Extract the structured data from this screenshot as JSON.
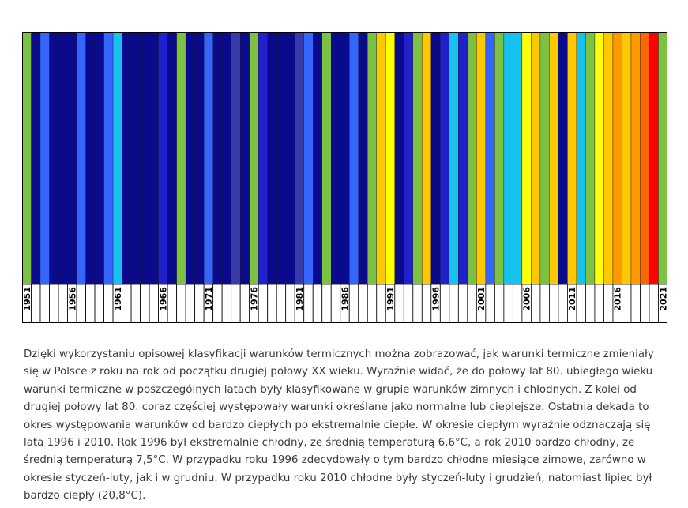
{
  "chart_data": {
    "type": "bar",
    "title": "",
    "xlabel": "",
    "ylabel": "",
    "categories": [
      "1951",
      "1952",
      "1953",
      "1954",
      "1955",
      "1956",
      "1957",
      "1958",
      "1959",
      "1960",
      "1961",
      "1962",
      "1963",
      "1964",
      "1965",
      "1966",
      "1967",
      "1968",
      "1969",
      "1970",
      "1971",
      "1972",
      "1973",
      "1974",
      "1975",
      "1976",
      "1977",
      "1978",
      "1979",
      "1980",
      "1981",
      "1982",
      "1983",
      "1984",
      "1985",
      "1986",
      "1987",
      "1988",
      "1989",
      "1990",
      "1991",
      "1992",
      "1993",
      "1994",
      "1995",
      "1996",
      "1997",
      "1998",
      "1999",
      "2000",
      "2001",
      "2002",
      "2003",
      "2004",
      "2005",
      "2006",
      "2007",
      "2008",
      "2009",
      "2010",
      "2011",
      "2012",
      "2013",
      "2014",
      "2015",
      "2016",
      "2017",
      "2018",
      "2019",
      "2020",
      "2021"
    ],
    "tick_labels": [
      "1951",
      "1956",
      "1961",
      "1966",
      "1971",
      "1976",
      "1981",
      "1986",
      "1991",
      "1996",
      "2001",
      "2006",
      "2011",
      "2016",
      "2021"
    ],
    "colors": [
      "#7cc142",
      "#0a0a8c",
      "#3466ff",
      "#0a0a8c",
      "#0a0a8c",
      "#0a0a8c",
      "#3466ff",
      "#0a0a8c",
      "#0a0a8c",
      "#3466ff",
      "#17c3ee",
      "#0a0a8c",
      "#0a0a8c",
      "#0a0a8c",
      "#0a0a8c",
      "#2020cc",
      "#0a0a8c",
      "#7cc142",
      "#0a0a8c",
      "#0a0a8c",
      "#3466ff",
      "#0a0a8c",
      "#0a0a8c",
      "#3a3aa8",
      "#0a0a8c",
      "#7cc142",
      "#2020cc",
      "#0a0a8c",
      "#0a0a8c",
      "#0a0a8c",
      "#3a3aa8",
      "#3466ff",
      "#0a0a8c",
      "#7cc142",
      "#0a0a8c",
      "#0a0a8c",
      "#3466ff",
      "#0a0a8c",
      "#7cc142",
      "#ffc800",
      "#ffff00",
      "#0a0a8c",
      "#2020cc",
      "#7cc142",
      "#ffc800",
      "#0a0a8c",
      "#2020cc",
      "#17c3ee",
      "#2020cc",
      "#7cc142",
      "#ffc800",
      "#3466ff",
      "#7cc142",
      "#17c3ee",
      "#17c3ee",
      "#ffff00",
      "#ffc800",
      "#7cc142",
      "#ffc800",
      "#0a0a8c",
      "#ffc800",
      "#17c3ee",
      "#7cc142",
      "#ffff00",
      "#ffc800",
      "#ff9900",
      "#ffc800",
      "#ff9900",
      "#ff6600",
      "#ff0000",
      "#7cc142"
    ]
  },
  "caption": "Dzięki wykorzystaniu opisowej klasyfikacji warunków termicznych można zobrazować, jak warunki termiczne zmieniały się w Polsce z roku na rok od początku drugiej połowy XX wieku. Wyraźnie widać, że do połowy lat 80. ubiegłego wieku warunki termiczne w poszczególnych latach były klasyfikowane w grupie warunków zimnych i chłodnych. Z kolei od drugiej połowy lat 80. coraz częściej występowały warunki określane jako normalne lub cieplejsze. Ostatnia dekada to okres występowania warunków od bardzo ciepłych po ekstremalnie ciepłe. W okresie ciepłym wyraźnie odznaczają się lata 1996 i 2010. Rok 1996 był ekstremalnie chłodny, ze średnią temperaturą 6,6°C, a rok 2010 bardzo chłodny, ze średnią temperaturą 7,5°C. W przypadku roku 1996 zdecydowały o tym bardzo chłodne miesiące zimowe, zarówno w okresie styczeń-luty, jak i w grudniu. W przypadku roku 2010 chłodne były styczeń-luty i grudzień, natomiast lipiec był bardzo ciepły (20,8°C)."
}
